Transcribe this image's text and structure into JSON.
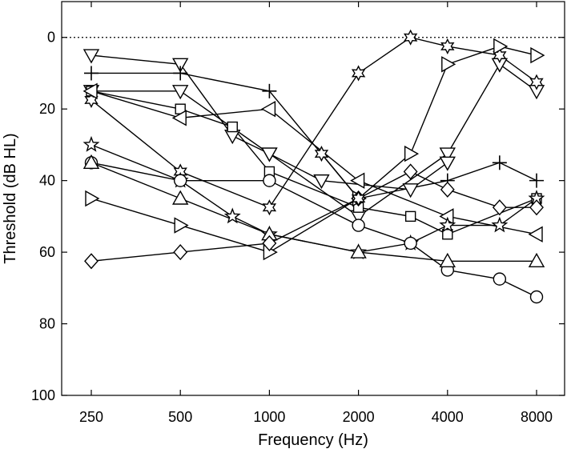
{
  "chart_data": {
    "type": "line",
    "title": "",
    "xlabel": "Frequency (Hz)",
    "ylabel": "Threshold (dB HL)",
    "x_scale": "log",
    "y_inverted": true,
    "xlim": [
      200,
      10000
    ],
    "ylim": [
      -10,
      100
    ],
    "x_ticks": [
      250,
      500,
      1000,
      2000,
      4000,
      8000
    ],
    "x_tick_labels": [
      "250",
      "500",
      "1000",
      "2000",
      "4000",
      "8000"
    ],
    "y_ticks": [
      0,
      20,
      40,
      60,
      80,
      100
    ],
    "y_tick_labels": [
      "0",
      "20",
      "40",
      "60",
      "80",
      "100"
    ],
    "reference_line": {
      "y": 0,
      "style": "dotted"
    },
    "grid": false,
    "legend": "none",
    "series": [
      {
        "marker": "triangle-down",
        "points": [
          [
            250,
            5
          ],
          [
            500,
            7.5
          ],
          [
            750,
            27.5
          ],
          [
            1000,
            32.5
          ],
          [
            2000,
            50
          ],
          [
            4000,
            32.5
          ],
          [
            6000,
            7.5
          ],
          [
            8000,
            15
          ]
        ]
      },
      {
        "marker": "triangle-down",
        "points": [
          [
            250,
            15
          ],
          [
            500,
            15
          ],
          [
            1000,
            32.5
          ],
          [
            1500,
            40
          ],
          [
            3000,
            42.5
          ],
          [
            4000,
            35
          ]
        ]
      },
      {
        "marker": "plus",
        "points": [
          [
            250,
            10
          ],
          [
            500,
            10
          ],
          [
            1000,
            15
          ],
          [
            2000,
            45
          ],
          [
            4000,
            40
          ],
          [
            6000,
            35
          ],
          [
            8000,
            40
          ]
        ]
      },
      {
        "marker": "star6",
        "points": [
          [
            250,
            17.5
          ],
          [
            500,
            37.5
          ],
          [
            1000,
            47.5
          ],
          [
            2000,
            10
          ],
          [
            3000,
            0
          ],
          [
            4000,
            2.5
          ],
          [
            6000,
            5
          ],
          [
            8000,
            12.5
          ]
        ]
      },
      {
        "marker": "square",
        "points": [
          [
            250,
            15
          ],
          [
            500,
            20
          ],
          [
            750,
            25
          ],
          [
            1000,
            37.5
          ],
          [
            2000,
            47.5
          ],
          [
            3000,
            50
          ],
          [
            4000,
            55
          ],
          [
            8000,
            45
          ]
        ]
      },
      {
        "marker": "triangle-left",
        "points": [
          [
            250,
            15
          ],
          [
            500,
            22.5
          ],
          [
            1000,
            20
          ],
          [
            2000,
            40
          ],
          [
            4000,
            50
          ],
          [
            8000,
            55
          ]
        ]
      },
      {
        "marker": "star5",
        "points": [
          [
            250,
            30
          ],
          [
            500,
            40
          ],
          [
            750,
            50
          ],
          [
            1000,
            55
          ],
          [
            2000,
            60
          ],
          [
            3000,
            57.5
          ],
          [
            4000,
            52.5
          ],
          [
            6000,
            52.5
          ],
          [
            8000,
            45
          ]
        ]
      },
      {
        "marker": "circle",
        "points": [
          [
            250,
            35
          ],
          [
            500,
            40
          ],
          [
            1000,
            40
          ],
          [
            2000,
            52.5
          ],
          [
            3000,
            57.5
          ],
          [
            4000,
            65
          ],
          [
            6000,
            67.5
          ],
          [
            8000,
            72.5
          ]
        ]
      },
      {
        "marker": "triangle-up",
        "points": [
          [
            250,
            35
          ],
          [
            500,
            45
          ],
          [
            1000,
            55
          ],
          [
            2000,
            60
          ],
          [
            4000,
            62.5
          ],
          [
            8000,
            62.5
          ]
        ]
      },
      {
        "marker": "triangle-right",
        "points": [
          [
            250,
            45
          ],
          [
            500,
            52.5
          ],
          [
            1000,
            60
          ],
          [
            2000,
            45
          ],
          [
            3000,
            32.5
          ],
          [
            4000,
            7.5
          ],
          [
            6000,
            2.5
          ],
          [
            8000,
            5
          ]
        ]
      },
      {
        "marker": "diamond",
        "points": [
          [
            250,
            62.5
          ],
          [
            500,
            60
          ],
          [
            1000,
            57.5
          ],
          [
            2000,
            45
          ],
          [
            3000,
            37.5
          ],
          [
            4000,
            42.5
          ],
          [
            6000,
            47.5
          ],
          [
            8000,
            47.5
          ]
        ]
      },
      {
        "marker": "star6",
        "points": [
          [
            1500,
            32.5
          ],
          [
            2000,
            45
          ]
        ]
      }
    ]
  }
}
